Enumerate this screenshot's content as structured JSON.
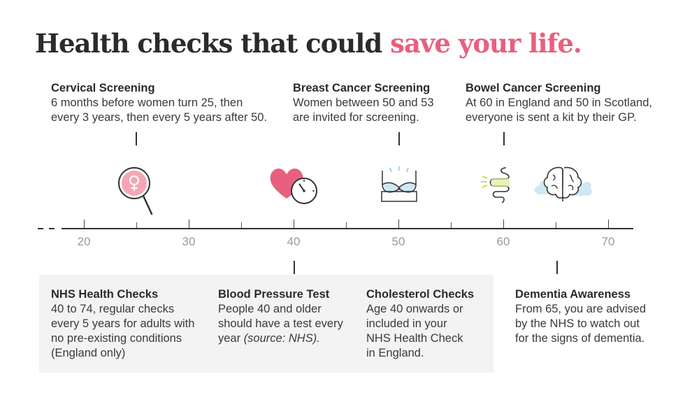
{
  "title": {
    "main": "Health checks that could",
    "accent": "save your life."
  },
  "colors": {
    "accent": "#e8607e",
    "panel": "#f3f3f3",
    "axis": "#333333",
    "tick_label": "#9a9a9a",
    "cloud": "#cfe8f5"
  },
  "top_items": [
    {
      "name": "Cervical Screening",
      "lines": [
        "6 months before women turn 25, then",
        "every 3 years, then every 5 years after 50."
      ]
    },
    {
      "name": "Breast Cancer Screening",
      "lines": [
        "Women between 50 and 53",
        "are invited for screening."
      ]
    },
    {
      "name": "Bowel Cancer Screening",
      "lines": [
        "At 60 in England and 50 in Scotland,",
        "everyone is sent a kit by their GP."
      ]
    }
  ],
  "bottom_items": [
    {
      "name": "NHS Health Checks",
      "lines": [
        "40 to 74, regular checks",
        "every 5 years for adults with",
        "no pre-existing conditions",
        "(England only)"
      ]
    },
    {
      "name": "Blood Pressure Test",
      "lines": [
        "People 40 and older",
        "should have a test every"
      ],
      "last_plain": "year ",
      "last_italic": "(source: NHS)."
    },
    {
      "name": "Cholesterol Checks",
      "lines": [
        "Age 40 onwards or",
        "included in your",
        "NHS Health Check",
        "in England."
      ]
    },
    {
      "name": "Dementia Awareness",
      "lines": [
        "From 65, you are advised",
        "by the NHS to watch out",
        "for the signs of dementia."
      ]
    }
  ],
  "axis": {
    "ticks": [
      "20",
      "30",
      "40",
      "50",
      "60",
      "70"
    ]
  },
  "icons": [
    "female-symbol-magnifier-icon",
    "heart-blood-pressure-gauge-icon",
    "bra-icon",
    "intestine-icon",
    "brain-icon"
  ]
}
